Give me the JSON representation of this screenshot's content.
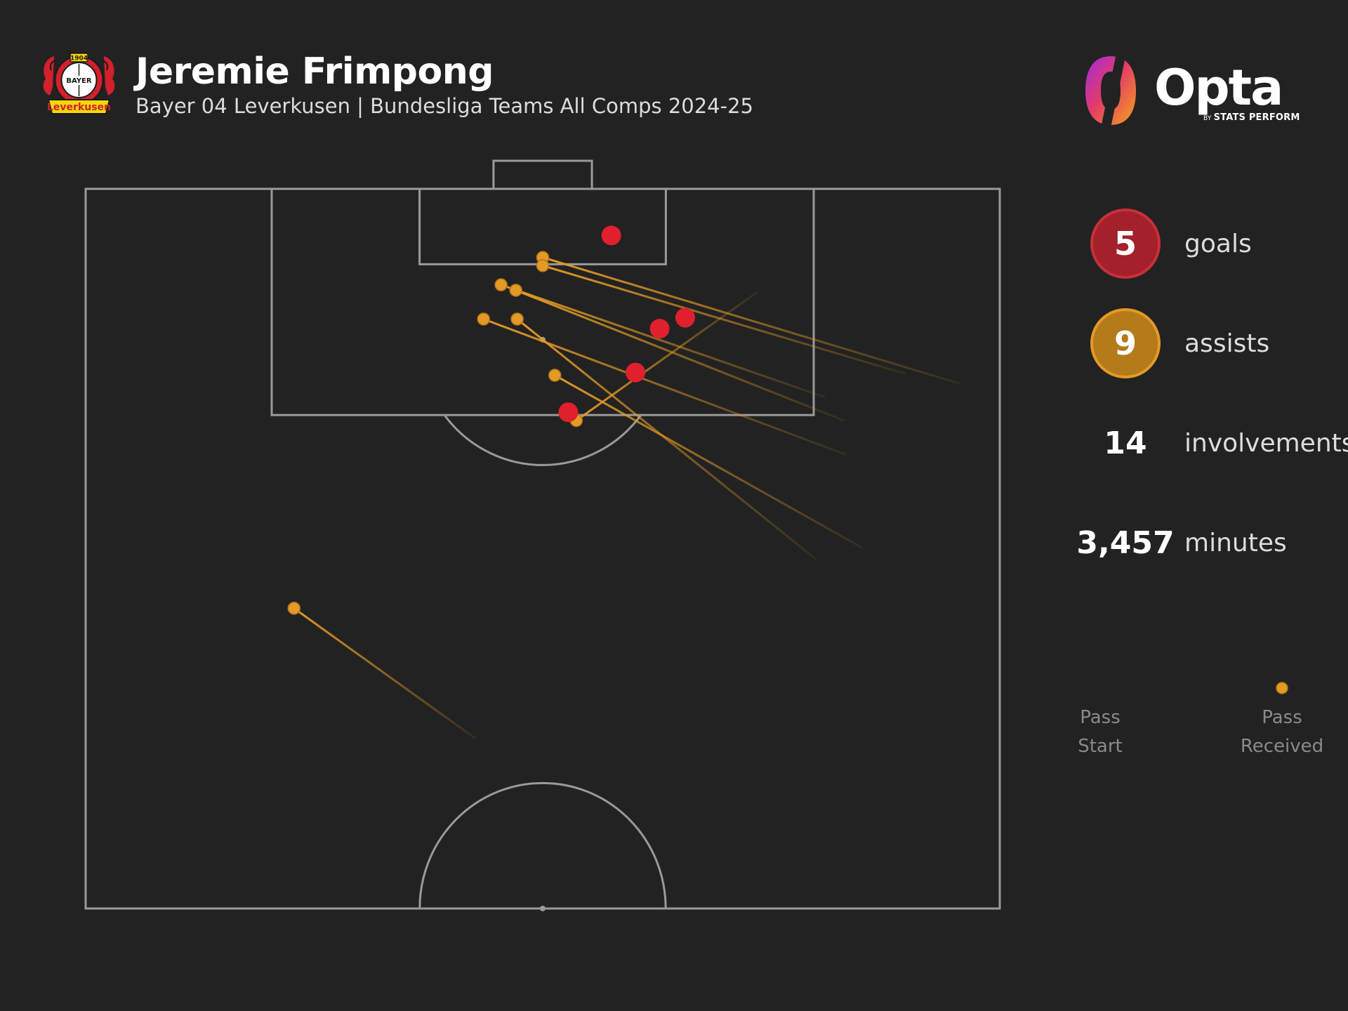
{
  "header": {
    "player_name": "Jeremie Frimpong",
    "subtitle": "Bayer 04 Leverkusen | Bundesliga Teams All Comps 2024-25",
    "crest": {
      "top_text": "1904",
      "ring_text": "BAYER",
      "banner_text": "Leverkusen"
    }
  },
  "brand": {
    "name": "Opta",
    "byline_small": "BY",
    "byline": "STATS PERFORM"
  },
  "stats": {
    "goals": {
      "value": "5",
      "label": "goals"
    },
    "assists": {
      "value": "9",
      "label": "assists"
    },
    "involvements": {
      "value": "14",
      "label": "involvements"
    },
    "minutes": {
      "value": "3,457",
      "label": "minutes"
    }
  },
  "legend": {
    "start_label": "Pass\nStart",
    "end_label": "Pass\nReceived"
  },
  "colors": {
    "background": "#222222",
    "pitch_lines": "#9a9a9a",
    "goal": "#e0202e",
    "assist": "#e39a26"
  },
  "chart_data": {
    "type": "scatter",
    "title": "Jeremie Frimpong",
    "subtitle": "Bayer 04 Leverkusen | Bundesliga Teams All Comps 2024-25",
    "xlabel": "",
    "ylabel": "",
    "coordinate_system": "opposition half, attacking up; x = 0 (left touchline) to 68 (right touchline), y = 0 (halfway line) to 52.5 (goal line)",
    "xlim": [
      0,
      68
    ],
    "ylim": [
      0,
      52.5
    ],
    "grid": false,
    "legend": "right",
    "series": [
      {
        "name": "goals",
        "points": [
          {
            "x": 39.1,
            "y": 49.1
          },
          {
            "x": 44.6,
            "y": 43.1
          },
          {
            "x": 42.7,
            "y": 42.3
          },
          {
            "x": 40.9,
            "y": 39.1
          },
          {
            "x": 35.9,
            "y": 36.2
          }
        ]
      },
      {
        "name": "assists",
        "passes": [
          {
            "start_x": 65.0,
            "start_y": 38.3,
            "end_x": 34.0,
            "end_y": 47.5
          },
          {
            "start_x": 61.0,
            "start_y": 39.0,
            "end_x": 34.0,
            "end_y": 46.9
          },
          {
            "start_x": 55.0,
            "start_y": 37.3,
            "end_x": 30.9,
            "end_y": 45.5
          },
          {
            "start_x": 56.4,
            "start_y": 35.6,
            "end_x": 32.0,
            "end_y": 45.1
          },
          {
            "start_x": 56.6,
            "start_y": 33.1,
            "end_x": 29.6,
            "end_y": 43.0
          },
          {
            "start_x": 54.3,
            "start_y": 25.5,
            "end_x": 32.1,
            "end_y": 43.0
          },
          {
            "start_x": 57.8,
            "start_y": 26.3,
            "end_x": 34.9,
            "end_y": 38.9
          },
          {
            "start_x": 50.0,
            "start_y": 45.0,
            "end_x": 36.5,
            "end_y": 35.6
          },
          {
            "start_x": 29.0,
            "start_y": 12.4,
            "end_x": 15.5,
            "end_y": 21.9
          }
        ]
      }
    ],
    "totals": {
      "goals": 5,
      "assists": 9,
      "involvements": 14,
      "minutes": 3457
    }
  }
}
